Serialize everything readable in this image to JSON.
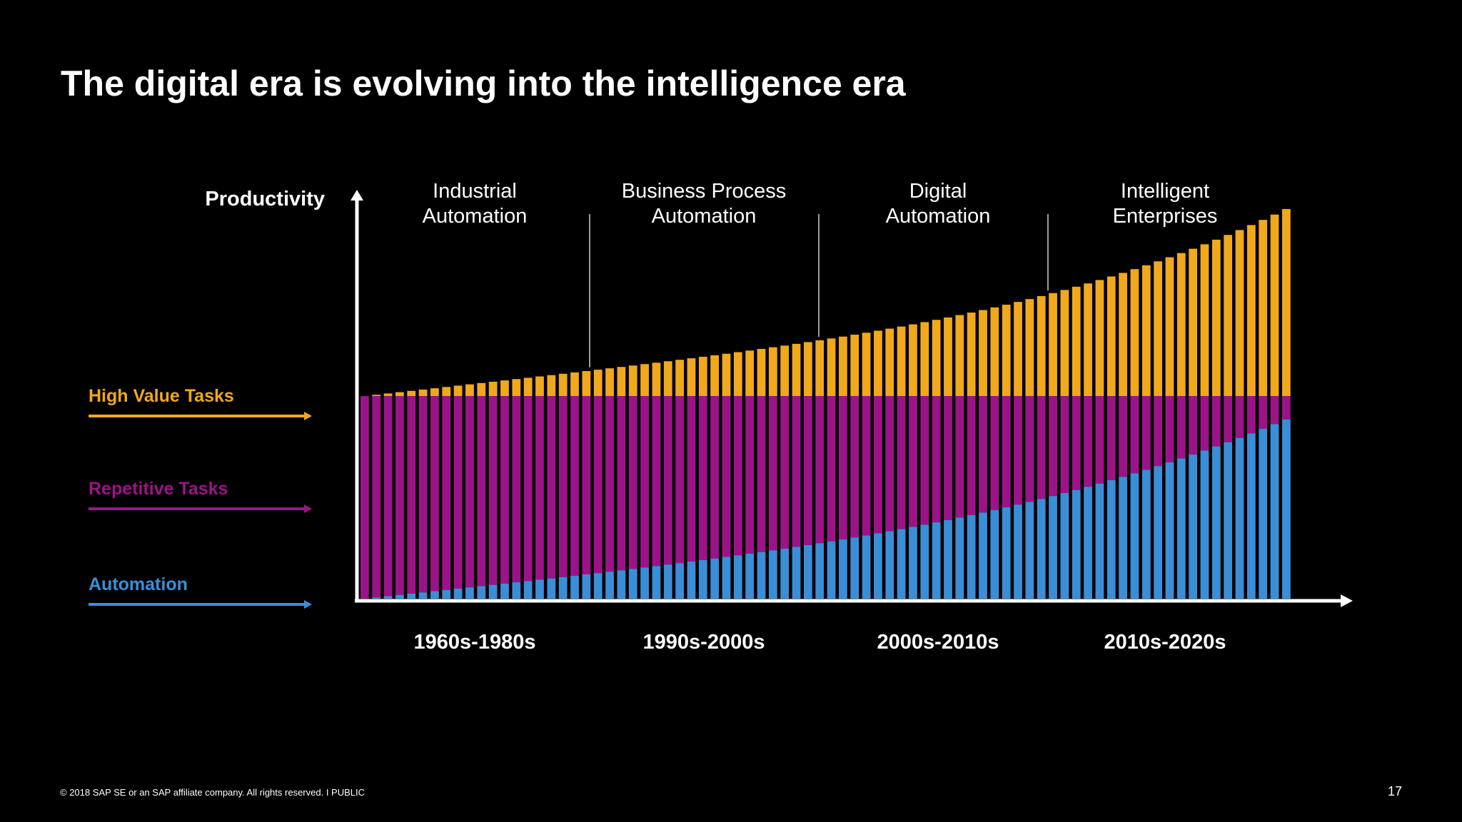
{
  "slide": {
    "title": "The digital era is evolving into the intelligence era",
    "footer": "© 2018 SAP SE or an SAP affiliate company. All rights reserved.   I   PUBLIC",
    "page_number": "17"
  },
  "colors": {
    "background": "#000000",
    "high_value": "#F0A81C",
    "repetitive": "#9B1487",
    "automation": "#3A8ED8",
    "axis": "#FFFFFF"
  },
  "chart_data": {
    "type": "bar",
    "stacked": true,
    "ylabel": "Productivity",
    "xlabel": "",
    "eras": [
      {
        "label": [
          "Industrial",
          "Automation"
        ],
        "period": "1960s-1980s"
      },
      {
        "label": [
          "Business Process",
          "Automation"
        ],
        "period": "1990s-2000s"
      },
      {
        "label": [
          "Digital",
          "Automation"
        ],
        "period": "2000s-2010s"
      },
      {
        "label": [
          "Intelligent",
          "Enterprises"
        ],
        "period": "2010s-2020s"
      }
    ],
    "legend": [
      {
        "name": "High Value Tasks",
        "color": "#F0A81C"
      },
      {
        "name": "Repetitive Tasks",
        "color": "#9B1487"
      },
      {
        "name": "Automation",
        "color": "#3A8ED8"
      }
    ],
    "bar_count": 80,
    "series_model": {
      "note": "relative productivity per bar, 0 = baseline, 1 = top of tallest bar",
      "total_start": 0.52,
      "total_end": 1.0,
      "repetitive_plus_automation_level": 0.52,
      "automation_start": 0.0,
      "automation_end": 0.46
    }
  }
}
